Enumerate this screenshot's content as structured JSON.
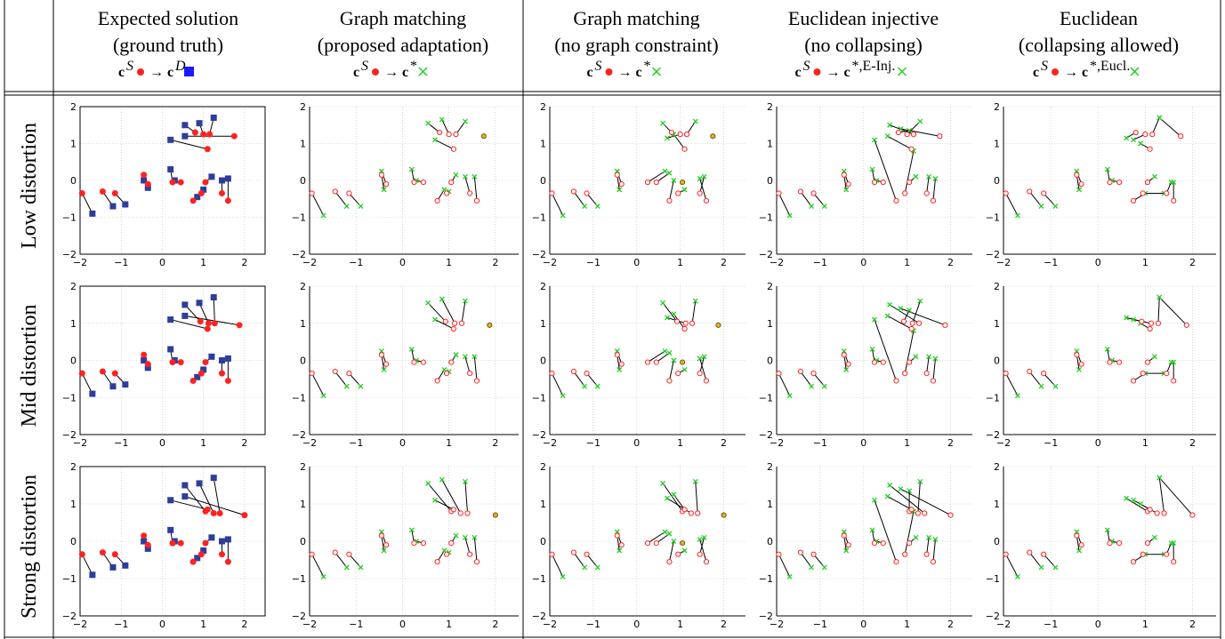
{
  "columns": [
    {
      "title1": "Expected solution",
      "title2": "(ground truth)",
      "mapping": {
        "src": "c",
        "src_sup": "S",
        "arrow": "→",
        "dst": "c",
        "dst_sup": "D",
        "marker": "square"
      }
    },
    {
      "title1": "Graph matching",
      "title2": "(proposed adaptation)",
      "mapping": {
        "src": "c",
        "src_sup": "S",
        "arrow": "→",
        "dst": "c",
        "dst_sup": "*",
        "marker": "cross"
      }
    },
    {
      "title1": "Graph matching",
      "title2": "(no graph constraint)",
      "mapping": {
        "src": "c",
        "src_sup": "S",
        "arrow": "→",
        "dst": "c",
        "dst_sup": "*",
        "marker": "cross"
      }
    },
    {
      "title1": "Euclidean injective",
      "title2": "(no collapsing)",
      "mapping": {
        "src": "c",
        "src_sup": "S",
        "arrow": "→",
        "dst": "c",
        "dst_sup": "*,E-Inj.",
        "marker": "cross"
      }
    },
    {
      "title1": "Euclidean",
      "title2": "(collapsing allowed)",
      "mapping": {
        "src": "c",
        "src_sup": "S",
        "arrow": "→",
        "dst": "c",
        "dst_sup": "*,Eucl.",
        "marker": "cross"
      }
    }
  ],
  "rows": [
    {
      "label": "Low distortion"
    },
    {
      "label": "Mid distortion"
    },
    {
      "label": "Strong distortion"
    }
  ],
  "colors": {
    "source_point": "#ff2222",
    "ground_truth_square": "#2e3d9c",
    "match_cross": "#22cc22",
    "unmatched_point": "#d9b23a",
    "link_line": "#000000",
    "grid": "#bbbbbb"
  },
  "chart_data": {
    "type": "scatter",
    "xlim": [
      -2,
      2.5
    ],
    "ylim": [
      -2,
      2
    ],
    "xticks": [
      "−2",
      "−1",
      "0",
      "1",
      "2"
    ],
    "yticks": [
      "−2",
      "−1",
      "0",
      "1",
      "2"
    ],
    "grid": true,
    "source_points": [
      [
        -1.95,
        -0.35
      ],
      [
        -1.45,
        -0.3
      ],
      [
        -1.15,
        -0.35
      ],
      [
        -0.45,
        0.15
      ],
      [
        -0.35,
        -0.1
      ],
      [
        0.25,
        -0.05
      ],
      [
        0.45,
        -0.05
      ],
      [
        0.75,
        -0.55
      ],
      [
        0.95,
        -0.35
      ],
      [
        1.05,
        -0.05
      ],
      [
        1.45,
        -0.35
      ],
      [
        1.6,
        -0.55
      ],
      [
        0.8,
        1.3
      ],
      [
        1.0,
        1.25
      ],
      [
        1.15,
        1.25
      ],
      [
        1.75,
        1.2
      ],
      [
        1.1,
        0.85
      ]
    ],
    "panels": [
      {
        "row": 0,
        "col": 0,
        "kind": "truth",
        "targets": [
          [
            -1.7,
            -0.9
          ],
          [
            -1.2,
            -0.7
          ],
          [
            -0.9,
            -0.65
          ],
          [
            -0.45,
            0
          ],
          [
            -0.35,
            -0.2
          ],
          [
            0.2,
            0.3
          ],
          [
            0.3,
            0.0
          ],
          [
            0.85,
            -0.45
          ],
          [
            1.0,
            -0.25
          ],
          [
            1.2,
            0.1
          ],
          [
            1.45,
            0.0
          ],
          [
            1.6,
            0.05
          ],
          [
            0.55,
            1.5
          ],
          [
            0.9,
            1.55
          ],
          [
            1.25,
            1.7
          ],
          [
            0.55,
            1.2
          ],
          [
            0.2,
            1.1
          ]
        ]
      },
      {
        "row": 0,
        "col": 1,
        "kind": "match",
        "unmatched": [
          15
        ],
        "targets": [
          [
            -1.7,
            -0.95
          ],
          [
            -1.2,
            -0.7
          ],
          [
            -0.9,
            -0.7
          ],
          [
            -0.4,
            -0.25
          ],
          [
            -0.45,
            0.25
          ],
          [
            0.2,
            0.3
          ],
          [
            0.3,
            0.0
          ],
          [
            0.9,
            -0.25
          ],
          [
            1.0,
            -0.3
          ],
          [
            1.15,
            0.15
          ],
          [
            1.35,
            0.1
          ],
          [
            1.55,
            0.1
          ],
          [
            0.55,
            1.55
          ],
          [
            0.85,
            1.65
          ],
          [
            1.35,
            1.6
          ],
          null,
          [
            0.7,
            1.1
          ]
        ]
      },
      {
        "row": 0,
        "col": 2,
        "kind": "match",
        "unmatched": [
          9,
          15
        ],
        "targets": [
          [
            -1.7,
            -0.95
          ],
          [
            -1.2,
            -0.7
          ],
          [
            -0.9,
            -0.7
          ],
          [
            -0.4,
            -0.25
          ],
          [
            -0.45,
            0.25
          ],
          [
            0.65,
            0.25
          ],
          [
            0.75,
            0.2
          ],
          [
            0.85,
            0.0
          ],
          [
            1.1,
            -0.25
          ],
          null,
          [
            1.55,
            0.1
          ],
          [
            1.45,
            0.05
          ],
          [
            0.6,
            1.55
          ],
          [
            0.7,
            1.15
          ],
          [
            1.35,
            1.6
          ],
          null,
          [
            0.85,
            1.25
          ]
        ]
      },
      {
        "row": 0,
        "col": 3,
        "kind": "match",
        "unmatched": [],
        "targets": [
          [
            -1.7,
            -0.95
          ],
          [
            -1.2,
            -0.7
          ],
          [
            -0.9,
            -0.7
          ],
          [
            -0.4,
            -0.25
          ],
          [
            -0.45,
            0.25
          ],
          [
            0.2,
            0.3
          ],
          [
            0.3,
            0.0
          ],
          [
            0.25,
            1.1
          ],
          [
            1.15,
            0.8
          ],
          [
            1.2,
            0.1
          ],
          [
            1.5,
            0.1
          ],
          [
            1.65,
            0.05
          ],
          [
            1.05,
            1.35
          ],
          [
            1.3,
            1.6
          ],
          [
            0.6,
            1.5
          ],
          [
            0.85,
            1.4
          ],
          [
            0.55,
            1.2
          ]
        ]
      },
      {
        "row": 0,
        "col": 4,
        "kind": "match",
        "unmatched": [],
        "targets": [
          [
            -1.7,
            -0.95
          ],
          [
            -1.2,
            -0.7
          ],
          [
            -0.9,
            -0.7
          ],
          [
            -0.4,
            -0.25
          ],
          [
            -0.45,
            0.25
          ],
          [
            0.2,
            0.3
          ],
          [
            0.3,
            0.0
          ],
          [
            1.0,
            -0.35
          ],
          [
            1.4,
            -0.35
          ],
          [
            1.2,
            0.1
          ],
          [
            1.55,
            -0.05
          ],
          [
            1.6,
            -0.05
          ],
          [
            0.6,
            1.15
          ],
          [
            0.75,
            1.1
          ],
          [
            1.3,
            1.7
          ],
          [
            1.3,
            1.7
          ],
          [
            0.9,
            1.0
          ]
        ]
      },
      {
        "row": 1,
        "col": 0,
        "kind": "truth",
        "targets": [
          [
            -1.7,
            -0.9
          ],
          [
            -1.2,
            -0.7
          ],
          [
            -0.9,
            -0.65
          ],
          [
            -0.45,
            0
          ],
          [
            -0.35,
            -0.2
          ],
          [
            0.2,
            0.3
          ],
          [
            0.3,
            0.0
          ],
          [
            0.85,
            -0.45
          ],
          [
            1.0,
            -0.25
          ],
          [
            1.2,
            0.1
          ],
          [
            1.45,
            0.0
          ],
          [
            1.6,
            0.05
          ],
          [
            0.55,
            1.5
          ],
          [
            0.9,
            1.55
          ],
          [
            1.25,
            1.7
          ],
          [
            0.55,
            1.2
          ],
          [
            0.2,
            1.1
          ]
        ]
      },
      {
        "row": 1,
        "col": 1,
        "kind": "match",
        "unmatched": [
          15
        ],
        "targets": [
          [
            -1.7,
            -0.95
          ],
          [
            -1.2,
            -0.7
          ],
          [
            -0.9,
            -0.7
          ],
          [
            -0.4,
            -0.25
          ],
          [
            -0.45,
            0.25
          ],
          [
            0.2,
            0.3
          ],
          [
            0.3,
            0.0
          ],
          [
            0.9,
            -0.25
          ],
          [
            1.0,
            -0.3
          ],
          [
            1.15,
            0.15
          ],
          [
            1.35,
            0.1
          ],
          [
            1.55,
            0.1
          ],
          [
            0.55,
            1.55
          ],
          [
            0.85,
            1.65
          ],
          [
            1.35,
            1.6
          ],
          null,
          [
            0.7,
            1.1
          ]
        ]
      },
      {
        "row": 1,
        "col": 2,
        "kind": "match",
        "unmatched": [
          9,
          15
        ],
        "targets": [
          [
            -1.7,
            -0.95
          ],
          [
            -1.2,
            -0.7
          ],
          [
            -0.9,
            -0.7
          ],
          [
            -0.4,
            -0.25
          ],
          [
            -0.45,
            0.25
          ],
          [
            0.65,
            0.25
          ],
          [
            0.75,
            0.2
          ],
          [
            0.85,
            0.0
          ],
          [
            1.1,
            -0.25
          ],
          null,
          [
            1.55,
            0.1
          ],
          [
            1.45,
            0.05
          ],
          [
            0.6,
            1.55
          ],
          [
            0.7,
            1.15
          ],
          [
            1.35,
            1.6
          ],
          null,
          [
            0.85,
            1.25
          ]
        ]
      },
      {
        "row": 1,
        "col": 3,
        "kind": "match",
        "unmatched": [],
        "targets": [
          [
            -1.7,
            -0.95
          ],
          [
            -1.2,
            -0.7
          ],
          [
            -0.9,
            -0.7
          ],
          [
            -0.4,
            -0.25
          ],
          [
            -0.45,
            0.25
          ],
          [
            0.2,
            0.3
          ],
          [
            0.3,
            0.0
          ],
          [
            0.25,
            1.1
          ],
          [
            1.15,
            0.8
          ],
          [
            1.2,
            0.1
          ],
          [
            1.5,
            0.1
          ],
          [
            1.65,
            0.05
          ],
          [
            1.05,
            1.35
          ],
          [
            1.3,
            1.6
          ],
          [
            0.6,
            1.5
          ],
          [
            0.85,
            1.4
          ],
          [
            0.55,
            1.2
          ]
        ]
      },
      {
        "row": 1,
        "col": 4,
        "kind": "match",
        "unmatched": [],
        "targets": [
          [
            -1.7,
            -0.95
          ],
          [
            -1.2,
            -0.7
          ],
          [
            -0.9,
            -0.7
          ],
          [
            -0.4,
            -0.25
          ],
          [
            -0.45,
            0.25
          ],
          [
            0.2,
            0.3
          ],
          [
            0.3,
            0.0
          ],
          [
            1.0,
            -0.35
          ],
          [
            1.4,
            -0.35
          ],
          [
            1.2,
            0.1
          ],
          [
            1.55,
            -0.05
          ],
          [
            1.6,
            -0.05
          ],
          [
            0.6,
            1.15
          ],
          [
            0.75,
            1.1
          ],
          [
            1.3,
            1.7
          ],
          [
            1.3,
            1.7
          ],
          [
            0.9,
            1.0
          ]
        ]
      },
      {
        "row": 2,
        "col": 0,
        "kind": "truth",
        "targets": [
          [
            -1.7,
            -0.9
          ],
          [
            -1.2,
            -0.7
          ],
          [
            -0.9,
            -0.65
          ],
          [
            -0.45,
            0
          ],
          [
            -0.35,
            -0.2
          ],
          [
            0.2,
            0.3
          ],
          [
            0.3,
            0.0
          ],
          [
            0.85,
            -0.45
          ],
          [
            1.0,
            -0.25
          ],
          [
            1.2,
            0.1
          ],
          [
            1.45,
            0.0
          ],
          [
            1.6,
            0.05
          ],
          [
            0.55,
            1.5
          ],
          [
            0.9,
            1.55
          ],
          [
            1.25,
            1.7
          ],
          [
            0.55,
            1.2
          ],
          [
            0.2,
            1.1
          ]
        ]
      },
      {
        "row": 2,
        "col": 1,
        "kind": "match",
        "unmatched": [
          15
        ],
        "targets": [
          [
            -1.7,
            -0.95
          ],
          [
            -1.2,
            -0.7
          ],
          [
            -0.9,
            -0.7
          ],
          [
            -0.4,
            -0.25
          ],
          [
            -0.45,
            0.25
          ],
          [
            0.2,
            0.3
          ],
          [
            0.3,
            0.0
          ],
          [
            0.9,
            -0.25
          ],
          [
            1.0,
            -0.3
          ],
          [
            1.15,
            0.15
          ],
          [
            1.35,
            0.1
          ],
          [
            1.55,
            0.1
          ],
          [
            0.55,
            1.55
          ],
          [
            0.85,
            1.65
          ],
          [
            1.35,
            1.6
          ],
          null,
          [
            0.7,
            1.1
          ]
        ]
      },
      {
        "row": 2,
        "col": 2,
        "kind": "match",
        "unmatched": [
          9,
          15
        ],
        "targets": [
          [
            -1.7,
            -0.95
          ],
          [
            -1.2,
            -0.7
          ],
          [
            -0.9,
            -0.7
          ],
          [
            -0.4,
            -0.25
          ],
          [
            -0.45,
            0.25
          ],
          [
            0.65,
            0.25
          ],
          [
            0.75,
            0.2
          ],
          [
            0.85,
            0.0
          ],
          [
            1.1,
            -0.25
          ],
          null,
          [
            1.55,
            0.1
          ],
          [
            1.45,
            0.05
          ],
          [
            0.6,
            1.55
          ],
          [
            0.7,
            1.15
          ],
          [
            1.35,
            1.6
          ],
          null,
          [
            0.85,
            1.25
          ]
        ]
      },
      {
        "row": 2,
        "col": 3,
        "kind": "match",
        "unmatched": [],
        "targets": [
          [
            -1.7,
            -0.95
          ],
          [
            -1.2,
            -0.7
          ],
          [
            -0.9,
            -0.7
          ],
          [
            -0.4,
            -0.25
          ],
          [
            -0.45,
            0.25
          ],
          [
            0.2,
            0.3
          ],
          [
            0.3,
            0.0
          ],
          [
            0.25,
            1.1
          ],
          [
            1.15,
            0.8
          ],
          [
            1.2,
            0.1
          ],
          [
            1.5,
            0.1
          ],
          [
            1.65,
            0.05
          ],
          [
            1.05,
            1.35
          ],
          [
            1.3,
            1.6
          ],
          [
            0.6,
            1.5
          ],
          [
            0.85,
            1.4
          ],
          [
            0.55,
            1.2
          ]
        ]
      },
      {
        "row": 2,
        "col": 4,
        "kind": "match",
        "unmatched": [],
        "targets": [
          [
            -1.7,
            -0.95
          ],
          [
            -1.2,
            -0.7
          ],
          [
            -0.9,
            -0.7
          ],
          [
            -0.4,
            -0.25
          ],
          [
            -0.45,
            0.25
          ],
          [
            0.2,
            0.3
          ],
          [
            0.3,
            0.0
          ],
          [
            1.0,
            -0.35
          ],
          [
            1.4,
            -0.35
          ],
          [
            1.2,
            0.1
          ],
          [
            1.55,
            -0.05
          ],
          [
            1.6,
            -0.05
          ],
          [
            0.6,
            1.15
          ],
          [
            0.75,
            1.1
          ],
          [
            1.3,
            1.7
          ],
          [
            1.3,
            1.7
          ],
          [
            0.9,
            1.0
          ]
        ]
      }
    ]
  },
  "row_distortion_scale": [
    0.0,
    0.5,
    1.0
  ]
}
